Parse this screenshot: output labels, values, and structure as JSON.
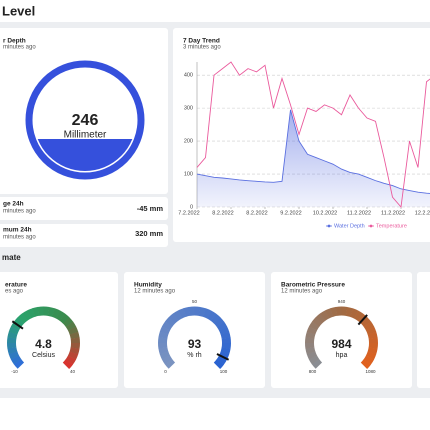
{
  "header": {
    "title": "Level"
  },
  "water_depth": {
    "title": "r Depth",
    "subtitle": "minutes ago",
    "value": 246,
    "unit": "Millimeter"
  },
  "stats": [
    {
      "title": "ge 24h",
      "subtitle": "minutes ago",
      "value": "-45 mm"
    },
    {
      "title": "mum 24h",
      "subtitle": "minutes ago",
      "value": "320 mm"
    }
  ],
  "chart_data": {
    "type": "line",
    "title": "7 Day Trend",
    "subtitle": "3 minutes ago",
    "x": [
      0,
      0.25,
      0.5,
      0.75,
      1,
      1.25,
      1.5,
      1.75,
      2,
      2.25,
      2.5,
      2.75,
      3,
      3.25,
      3.5,
      3.75,
      4,
      4.25,
      4.5,
      4.75,
      5,
      5.25,
      5.5,
      5.75,
      6,
      6.25,
      6.5,
      6.75,
      7,
      7.25
    ],
    "xlim": [
      0,
      8
    ],
    "xticks": [
      {
        "value": 0,
        "label": "7.2.2022"
      },
      {
        "value": 1,
        "label": "8.2.2022"
      },
      {
        "value": 2,
        "label": "8.2.2022"
      },
      {
        "value": 3,
        "label": "9.2.2022"
      },
      {
        "value": 4,
        "label": "10.2.2022"
      },
      {
        "value": 5,
        "label": "11.2.2022"
      },
      {
        "value": 6,
        "label": "11.2.2022"
      },
      {
        "value": 7,
        "label": "12.2.2022"
      }
    ],
    "ylim": [
      0,
      440
    ],
    "yticks": [
      0,
      100,
      200,
      300,
      400
    ],
    "grid": true,
    "series": [
      {
        "name": "Water Depth",
        "color": "#5a6fe0",
        "fill": true,
        "values": [
          100,
          95,
          90,
          88,
          85,
          82,
          80,
          78,
          76,
          75,
          78,
          295,
          200,
          160,
          150,
          140,
          130,
          115,
          105,
          100,
          90,
          80,
          72,
          65,
          55,
          50,
          45,
          42,
          40,
          38
        ]
      },
      {
        "name": "Temperature",
        "color": "#ea5a9c",
        "fill": false,
        "values": [
          120,
          150,
          400,
          420,
          440,
          400,
          420,
          410,
          430,
          300,
          390,
          310,
          220,
          300,
          290,
          310,
          300,
          280,
          340,
          300,
          270,
          260,
          150,
          30,
          0,
          200,
          120,
          380,
          400,
          350
        ]
      }
    ]
  },
  "section": {
    "title": "mate"
  },
  "gauges": [
    {
      "title": "erature",
      "subtitle": "es ago",
      "value": 4.8,
      "unit": "Celsius",
      "min": -10,
      "max": 40,
      "ticks": [
        -10,
        40
      ],
      "colors": [
        "#2f6fd6",
        "#2aa36b",
        "#3b8a4c",
        "#d8342f"
      ]
    },
    {
      "title": "Humidity",
      "subtitle": "12 minutes ago",
      "value": 93,
      "unit": "% rh",
      "min": 0,
      "max": 100,
      "ticks": [
        0,
        50,
        100
      ],
      "colors": [
        "#7a93c0",
        "#2a63d1"
      ]
    },
    {
      "title": "Barometric Pressure",
      "subtitle": "12 minutes ago",
      "value": 984,
      "unit": "hpa",
      "min": 800,
      "max": 1080,
      "ticks": [
        800,
        940,
        1080
      ],
      "colors": [
        "#8a8d93",
        "#a06a43",
        "#e0601d"
      ]
    }
  ]
}
